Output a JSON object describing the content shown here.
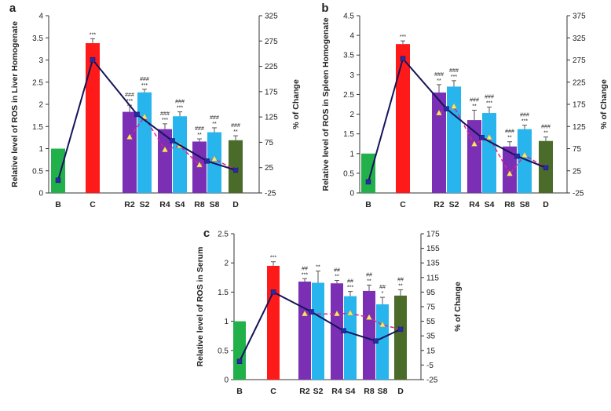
{
  "chart_data": [
    {
      "panel": "a",
      "type": "bar",
      "categories": [
        "B",
        "C",
        "R2",
        "S2",
        "R4",
        "S4",
        "R8",
        "S8",
        "D"
      ],
      "ylabel": "Relative level of ROS in Liver Homogenate",
      "y2label": "% of Change",
      "ylim": [
        0,
        4
      ],
      "yticks": [
        "0",
        "0.5",
        "1",
        "1.5",
        "2",
        "2.5",
        "3",
        "3.5",
        "4"
      ],
      "y2lim": [
        -25,
        325
      ],
      "y2ticks": [
        "-25",
        "25",
        "75",
        "125",
        "175",
        "225",
        "275",
        "325"
      ],
      "values": [
        1.0,
        3.38,
        1.83,
        2.27,
        1.44,
        1.73,
        1.16,
        1.37,
        1.19
      ],
      "errors": [
        0,
        0.1,
        0.15,
        0.07,
        0.12,
        0.1,
        0.06,
        0.1,
        0.1
      ],
      "colors": [
        "#22b04b",
        "#ff1a1a",
        "#7a2fb5",
        "#28b4ec",
        "#7a2fb5",
        "#28b4ec",
        "#7a2fb5",
        "#28b4ec",
        "#4a6b2a"
      ],
      "annotations": [
        [],
        [
          "***"
        ],
        [
          "###",
          "***"
        ],
        [
          "###",
          "***"
        ],
        [
          "###",
          "***"
        ],
        [
          "###",
          "***"
        ],
        [
          "###",
          "**"
        ],
        [
          "###",
          "**"
        ],
        [
          "###",
          "**"
        ]
      ],
      "series": [
        {
          "name": "% change (solid)",
          "points": [
            [
              0,
              0
            ],
            [
              1,
              238
            ],
            [
              2.5,
              130
            ],
            [
              4.5,
              78
            ],
            [
              6.5,
              38
            ],
            [
              8,
              20
            ]
          ]
        },
        {
          "name": "% change (dashed)",
          "points": [
            [
              2,
              85
            ],
            [
              3,
              125
            ],
            [
              4,
              60
            ],
            [
              5,
              68
            ],
            [
              6,
              30
            ],
            [
              7,
              42
            ],
            [
              8,
              20
            ]
          ]
        }
      ]
    },
    {
      "panel": "b",
      "type": "bar",
      "categories": [
        "B",
        "C",
        "R2",
        "S2",
        "R4",
        "S4",
        "R8",
        "S8",
        "D"
      ],
      "ylabel": "Relative level of ROS in Spleen Homogenate",
      "y2label": "% of Change",
      "ylim": [
        0,
        4.5
      ],
      "yticks": [
        "0",
        "0.5",
        "1",
        "1.5",
        "2",
        "2.5",
        "3",
        "3.5",
        "4",
        "4.5"
      ],
      "y2lim": [
        -25,
        375
      ],
      "y2ticks": [
        "-25",
        "25",
        "75",
        "125",
        "175",
        "225",
        "275",
        "325",
        "375"
      ],
      "values": [
        1.0,
        3.78,
        2.55,
        2.7,
        1.85,
        2.03,
        1.18,
        1.62,
        1.32
      ],
      "errors": [
        0,
        0.08,
        0.2,
        0.15,
        0.25,
        0.15,
        0.12,
        0.1,
        0.1
      ],
      "colors": [
        "#22b04b",
        "#ff1a1a",
        "#7a2fb5",
        "#28b4ec",
        "#7a2fb5",
        "#28b4ec",
        "#7a2fb5",
        "#28b4ec",
        "#4a6b2a"
      ],
      "annotations": [
        [],
        [
          "***"
        ],
        [
          "###",
          "**"
        ],
        [
          "###",
          "***"
        ],
        [
          "###",
          "**"
        ],
        [
          "###",
          "***"
        ],
        [
          "###",
          "**"
        ],
        [
          "###",
          "***"
        ],
        [
          "###",
          "**"
        ]
      ],
      "series": [
        {
          "name": "% change (solid)",
          "points": [
            [
              0,
              0
            ],
            [
              1,
              278
            ],
            [
              2.5,
              165
            ],
            [
              4.5,
              100
            ],
            [
              6.5,
              58
            ],
            [
              8,
              32
            ]
          ]
        },
        {
          "name": "% change (dashed)",
          "points": [
            [
              2,
              155
            ],
            [
              3,
              170
            ],
            [
              4,
              85
            ],
            [
              5,
              100
            ],
            [
              6,
              18
            ],
            [
              7,
              60
            ],
            [
              8,
              32
            ]
          ]
        }
      ]
    },
    {
      "panel": "c",
      "type": "bar",
      "categories": [
        "B",
        "C",
        "R2",
        "S2",
        "R4",
        "S4",
        "R8",
        "S8",
        "D"
      ],
      "ylabel": "Relative level of ROS in Serum",
      "y2label": "% of Change",
      "ylim": [
        0,
        2.5
      ],
      "yticks": [
        "0",
        "0.5",
        "1",
        "1.5",
        "2",
        "2.5"
      ],
      "y2lim": [
        -25,
        175
      ],
      "y2ticks": [
        "-25",
        "-5",
        "15",
        "35",
        "55",
        "75",
        "95",
        "115",
        "135",
        "155",
        "175"
      ],
      "values": [
        1.0,
        1.95,
        1.68,
        1.66,
        1.65,
        1.43,
        1.52,
        1.29,
        1.44
      ],
      "errors": [
        0,
        0.07,
        0.05,
        0.2,
        0.05,
        0.08,
        0.1,
        0.12,
        0.1
      ],
      "colors": [
        "#22b04b",
        "#ff1a1a",
        "#7a2fb5",
        "#28b4ec",
        "#7a2fb5",
        "#28b4ec",
        "#7a2fb5",
        "#28b4ec",
        "#4a6b2a"
      ],
      "annotations": [
        [],
        [
          "***"
        ],
        [
          "##",
          "***"
        ],
        [
          "**"
        ],
        [
          "##",
          "**"
        ],
        [
          "##",
          "***"
        ],
        [
          "##",
          "**"
        ],
        [
          "##",
          "*"
        ],
        [
          "##",
          "**"
        ]
      ],
      "series": [
        {
          "name": "% change (solid)",
          "points": [
            [
              0,
              0
            ],
            [
              1,
              95
            ],
            [
              2.5,
              68
            ],
            [
              4.5,
              42
            ],
            [
              6.5,
              28
            ],
            [
              8,
              44
            ]
          ]
        },
        {
          "name": "% change (dashed)",
          "points": [
            [
              2,
              65
            ],
            [
              4,
              65
            ],
            [
              5,
              66
            ],
            [
              6,
              60
            ],
            [
              7,
              50
            ],
            [
              8,
              44
            ]
          ]
        }
      ]
    }
  ]
}
